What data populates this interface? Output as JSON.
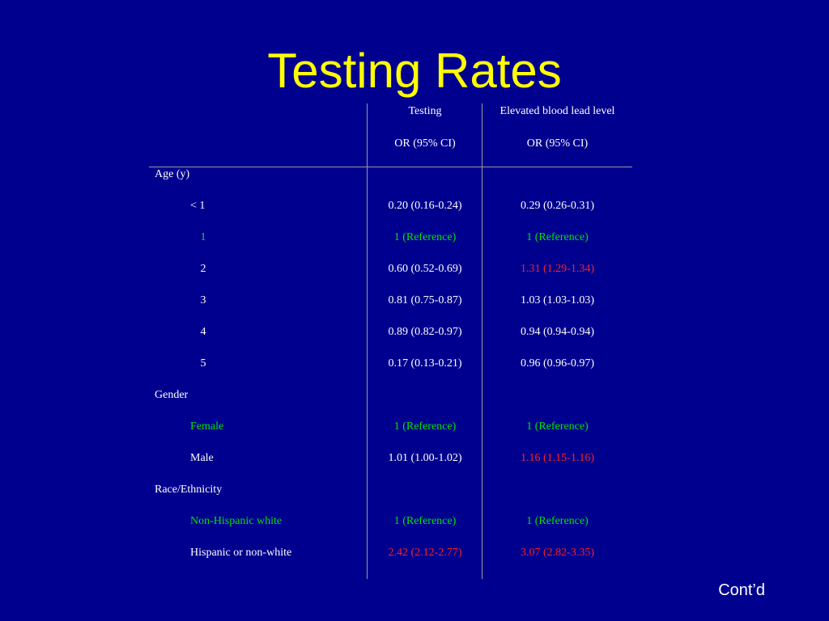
{
  "slide": {
    "title": "Testing Rates",
    "footer_note": "Cont’d"
  },
  "table": {
    "headers": {
      "col1_line1": "Testing",
      "col1_line2": "OR (95% CI)",
      "col2_line1": "Elevated blood lead level",
      "col2_line2": "OR (95% CI)"
    },
    "sections": [
      {
        "label": "Age (y)",
        "rows": [
          {
            "label": "< 1",
            "testing": "0.20 (0.16-0.24)",
            "elevated": "0.29 (0.26-0.31)"
          },
          {
            "label": "1",
            "testing": "1 (Reference)",
            "elevated": "1 (Reference)"
          },
          {
            "label": "2",
            "testing": "0.60 (0.52-0.69)",
            "elevated": "1.31 (1.29-1.34)"
          },
          {
            "label": "3",
            "testing": "0.81 (0.75-0.87)",
            "elevated": "1.03 (1.03-1.03)"
          },
          {
            "label": "4",
            "testing": "0.89 (0.82-0.97)",
            "elevated": "0.94 (0.94-0.94)"
          },
          {
            "label": "5",
            "testing": "0.17 (0.13-0.21)",
            "elevated": "0.96 (0.96-0.97)"
          }
        ]
      },
      {
        "label": "Gender",
        "rows": [
          {
            "label": "Female",
            "testing": "1 (Reference)",
            "elevated": "1 (Reference)"
          },
          {
            "label": "Male",
            "testing": "1.01 (1.00-1.02)",
            "elevated": "1.16 (1.15-1.16)"
          }
        ]
      },
      {
        "label": "Race/Ethnicity",
        "rows": [
          {
            "label": "Non-Hispanic white",
            "testing": "1 (Reference)",
            "elevated": "1 (Reference)"
          },
          {
            "label": "Hispanic or non-white",
            "testing": "2.42 (2.12-2.77)",
            "elevated": "3.07 (2.82-3.35)"
          }
        ]
      }
    ]
  },
  "colors": {
    "background": "#00008f",
    "title": "#ffff00",
    "text": "#ffffff",
    "reference_highlight": "#00e400",
    "significant_highlight": "#ff2020",
    "grid_lines": "#9a9a9a"
  }
}
